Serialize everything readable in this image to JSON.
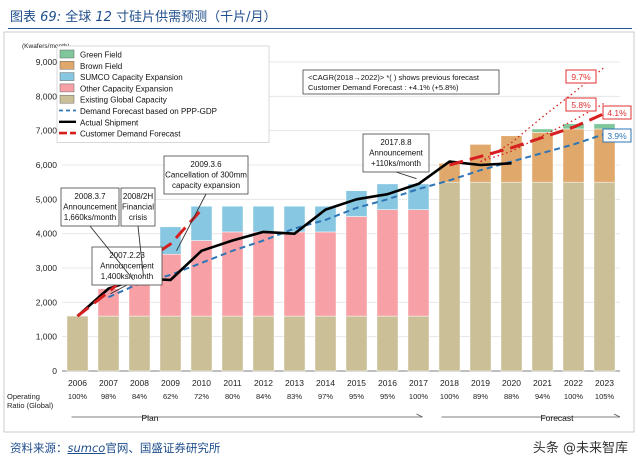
{
  "figure": {
    "label": "图表",
    "number": "69:",
    "title_pre": "全球",
    "title_num": "12",
    "title_post": "寸硅片供需预测（千片/月）"
  },
  "source": {
    "prefix": "资料来源：",
    "brand": "sumco",
    "suffix": "官网、国盛证券研究所"
  },
  "watermark": "头条 @未来智库",
  "colors": {
    "existing": "#cbbf97",
    "other_expansion": "#f7a1a6",
    "sumco_expansion": "#88c7e2",
    "brown_field": "#e0a86b",
    "green_field": "#7fc79b",
    "demand_ppp": "#2e75b6",
    "actual_shipment": "#000000",
    "customer_demand": "#d62020",
    "accent_red": "#e03030",
    "accent_blue": "#2e75b6"
  },
  "chart_data": {
    "type": "bar",
    "ylabel": "(Kwafers/month)",
    "ylim": [
      0,
      9000
    ],
    "yticks": [
      "0",
      "1,000",
      "2,000",
      "3,000",
      "4,000",
      "5,000",
      "6,000",
      "7,000",
      "8,000",
      "9,000"
    ],
    "categories": [
      "2006",
      "2007",
      "2008",
      "2009",
      "2010",
      "2011",
      "2012",
      "2013",
      "2014",
      "2015",
      "2016",
      "2017",
      "2018",
      "2019",
      "2020",
      "2021",
      "2022",
      "2023"
    ],
    "operating_ratio_label": [
      "Operating",
      "Ratio (Global)"
    ],
    "operating_ratio": [
      "100%",
      "98%",
      "84%",
      "62%",
      "72%",
      "80%",
      "84%",
      "83%",
      "97%",
      "95%",
      "95%",
      "100%",
      "100%",
      "89%",
      "88%",
      "94%",
      "100%",
      "105%"
    ],
    "stacked_series": [
      {
        "key": "existing",
        "name": "Existing Global Capacity",
        "values": [
          1600,
          1600,
          1600,
          1600,
          1600,
          1600,
          1600,
          1600,
          1600,
          1600,
          1600,
          1600,
          5500,
          5500,
          5500,
          5500,
          5500,
          5500
        ]
      },
      {
        "key": "other_expansion",
        "name": "Other Capacity Expansion",
        "values": [
          0,
          800,
          1600,
          1800,
          2200,
          2450,
          2450,
          2450,
          2450,
          2900,
          3100,
          3100,
          0,
          0,
          0,
          0,
          0,
          0
        ]
      },
      {
        "key": "sumco_expansion",
        "name": "SUMCO Capacity Expansion",
        "values": [
          0,
          0,
          0,
          800,
          1000,
          750,
          750,
          750,
          750,
          750,
          750,
          750,
          0,
          0,
          0,
          0,
          0,
          0
        ]
      },
      {
        "key": "brown_field",
        "name": "Brown Field",
        "values": [
          0,
          0,
          0,
          0,
          0,
          0,
          0,
          0,
          0,
          0,
          0,
          0,
          550,
          1100,
          1350,
          1450,
          1550,
          1550
        ]
      },
      {
        "key": "green_field",
        "name": "Green Field",
        "values": [
          0,
          0,
          0,
          0,
          0,
          0,
          0,
          0,
          0,
          0,
          0,
          0,
          0,
          0,
          0,
          100,
          150,
          150
        ]
      }
    ],
    "line_series": [
      {
        "key": "demand_ppp",
        "name": "Demand Forecast based on PPP-GDP",
        "style": "dashed",
        "x": [
          2007,
          2008,
          2009,
          2010,
          2011,
          2012,
          2013,
          2014,
          2015,
          2016,
          2017,
          2018,
          2019,
          2020,
          2021,
          2022,
          2023
        ],
        "values": [
          2150,
          2550,
          2800,
          3150,
          3500,
          3800,
          4150,
          4400,
          4750,
          5000,
          5300,
          5550,
          5850,
          6100,
          6350,
          6600,
          6900
        ]
      },
      {
        "key": "actual_shipment",
        "name": "Actual Shipment",
        "style": "solid",
        "x": [
          2006,
          2007,
          2008,
          2009,
          2010,
          2011,
          2012,
          2013,
          2014,
          2015,
          2016,
          2017,
          2018,
          2019,
          2020
        ],
        "values": [
          1600,
          2400,
          2700,
          2650,
          3500,
          3800,
          4050,
          4000,
          4700,
          5000,
          5150,
          5450,
          6100,
          6000,
          6050
        ]
      },
      {
        "key": "customer_demand",
        "name": "Customer Demand Forecast",
        "style": "dashed",
        "x": [
          2006,
          2007,
          2008,
          2009,
          2010
        ],
        "values": [
          1600,
          2300,
          3100,
          3700,
          4700
        ]
      },
      {
        "key": "customer_demand_forecast",
        "name": "",
        "style": "dashed",
        "x": [
          2018,
          2019,
          2020,
          2021,
          2022,
          2023
        ],
        "values": [
          6000,
          6250,
          6500,
          6800,
          7100,
          7500
        ]
      },
      {
        "key": "dotted_high",
        "name": "",
        "style": "dotted",
        "x": [
          2019,
          2020,
          2021,
          2022,
          2023
        ],
        "values": [
          6100,
          6650,
          7400,
          8100,
          8850
        ]
      },
      {
        "key": "dotted_mid",
        "name": "",
        "style": "dotted",
        "x": [
          2019,
          2020,
          2021,
          2022,
          2023
        ],
        "values": [
          6100,
          6400,
          6850,
          7300,
          7800
        ]
      }
    ],
    "legend": [
      "Green Field",
      "Brown Field",
      "SUMCO Capacity Expansion",
      "Other Capacity Expansion",
      "Existing Global Capacity",
      "Demand Forecast based on PPP-GDP",
      "Actual Shipment",
      "Customer Demand Forecast"
    ],
    "legend_position": "top-left",
    "info_box": [
      "<CAGR(2018→2022)> *( ) shows previous forecast",
      "Customer Demand Forecast : +4.1% (+5.8%)"
    ],
    "annotations": [
      {
        "lines": [
          "2007.2.23",
          "Announcement",
          "1,400ks/month"
        ]
      },
      {
        "lines": [
          "2008.3.7",
          "Announcement",
          "1,660ks/month"
        ]
      },
      {
        "lines": [
          "2008/2H",
          "Financial",
          "crisis"
        ]
      },
      {
        "lines": [
          "2009.3.6",
          "Cancellation of 300mm",
          "capacity expansion"
        ]
      },
      {
        "lines": [
          "2017.8.8",
          "Announcement",
          "+110ks/month"
        ]
      }
    ],
    "forecast_labels": [
      "9.7%",
      "5.8%",
      "4.1%",
      "3.9%"
    ],
    "period_labels": {
      "plan": "Plan",
      "forecast": "Forecast"
    }
  }
}
